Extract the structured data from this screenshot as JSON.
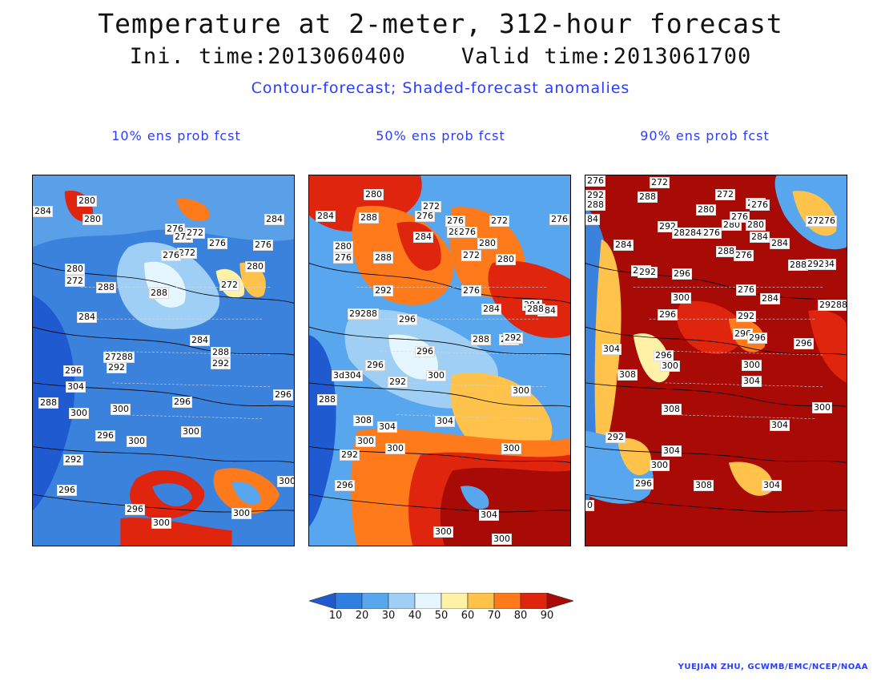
{
  "header": {
    "title": "Temperature at 2-meter, 312-hour forecast",
    "times": "Ini. time:2013060400    Valid time:2013061700",
    "subtitle": "Contour-forecast; Shaded-forecast anomalies"
  },
  "panels": [
    {
      "title": "10% ens prob fcst",
      "labels": [
        {
          "t": "280"
        },
        {
          "t": "284"
        },
        {
          "t": "280"
        },
        {
          "t": "276"
        },
        {
          "t": "272"
        },
        {
          "t": "272"
        },
        {
          "t": "272"
        },
        {
          "t": "276"
        },
        {
          "t": "276"
        },
        {
          "t": "284"
        },
        {
          "t": "280"
        },
        {
          "t": "272"
        },
        {
          "t": "276"
        },
        {
          "t": "280"
        },
        {
          "t": "280"
        },
        {
          "t": "288"
        },
        {
          "t": "288"
        },
        {
          "t": "272"
        },
        {
          "t": "284"
        },
        {
          "t": "284"
        },
        {
          "t": "288"
        },
        {
          "t": "292"
        },
        {
          "t": "27288"
        },
        {
          "t": "292"
        },
        {
          "t": "296"
        },
        {
          "t": "304"
        },
        {
          "t": "288"
        },
        {
          "t": "300"
        },
        {
          "t": "300"
        },
        {
          "t": "296"
        },
        {
          "t": "300"
        },
        {
          "t": "300"
        },
        {
          "t": "296"
        },
        {
          "t": "296"
        },
        {
          "t": "292"
        },
        {
          "t": "300"
        },
        {
          "t": "296"
        },
        {
          "t": "300"
        },
        {
          "t": "300"
        },
        {
          "t": "296"
        }
      ]
    },
    {
      "title": "50% ens prob fcst",
      "labels": [
        {
          "t": "280"
        },
        {
          "t": "272"
        },
        {
          "t": "284"
        },
        {
          "t": "288"
        },
        {
          "t": "276"
        },
        {
          "t": "276"
        },
        {
          "t": "272"
        },
        {
          "t": "276"
        },
        {
          "t": "284"
        },
        {
          "t": "280"
        },
        {
          "t": "276"
        },
        {
          "t": "280"
        },
        {
          "t": "280"
        },
        {
          "t": "272"
        },
        {
          "t": "280"
        },
        {
          "t": "276"
        },
        {
          "t": "288"
        },
        {
          "t": "288"
        },
        {
          "t": "292"
        },
        {
          "t": "276"
        },
        {
          "t": "284"
        },
        {
          "t": "284"
        },
        {
          "t": "284"
        },
        {
          "t": "288"
        },
        {
          "t": "29288"
        },
        {
          "t": "296"
        },
        {
          "t": "296"
        },
        {
          "t": "288"
        },
        {
          "t": "292"
        },
        {
          "t": "296"
        },
        {
          "t": "292"
        },
        {
          "t": "3d304"
        },
        {
          "t": "292"
        },
        {
          "t": "300"
        },
        {
          "t": "300"
        },
        {
          "t": "288"
        },
        {
          "t": "304"
        },
        {
          "t": "308"
        },
        {
          "t": "304"
        },
        {
          "t": "300"
        },
        {
          "t": "300"
        },
        {
          "t": "292"
        },
        {
          "t": "296"
        },
        {
          "t": "300"
        },
        {
          "t": "304"
        },
        {
          "t": "300"
        },
        {
          "t": "300"
        }
      ]
    },
    {
      "title": "90% ens prob fcst",
      "labels": [
        {
          "t": "276"
        },
        {
          "t": "272"
        },
        {
          "t": "292"
        },
        {
          "t": "288"
        },
        {
          "t": "280"
        },
        {
          "t": "272"
        },
        {
          "t": "272"
        },
        {
          "t": "288"
        },
        {
          "t": "276"
        },
        {
          "t": "84"
        },
        {
          "t": "292"
        },
        {
          "t": "280"
        },
        {
          "t": "276"
        },
        {
          "t": "280"
        },
        {
          "t": "27276"
        },
        {
          "t": "284"
        },
        {
          "t": "28284"
        },
        {
          "t": "276"
        },
        {
          "t": "284"
        },
        {
          "t": "288"
        },
        {
          "t": "276"
        },
        {
          "t": "284"
        },
        {
          "t": "288"
        },
        {
          "t": "284"
        },
        {
          "t": "288"
        },
        {
          "t": "292"
        },
        {
          "t": "296"
        },
        {
          "t": "292"
        },
        {
          "t": "276"
        },
        {
          "t": "300"
        },
        {
          "t": "284"
        },
        {
          "t": "29288"
        },
        {
          "t": "296"
        },
        {
          "t": "292"
        },
        {
          "t": "296"
        },
        {
          "t": "296"
        },
        {
          "t": "296"
        },
        {
          "t": "296"
        },
        {
          "t": "304"
        },
        {
          "t": "300"
        },
        {
          "t": "300"
        },
        {
          "t": "308"
        },
        {
          "t": "304"
        },
        {
          "t": "308"
        },
        {
          "t": "300"
        },
        {
          "t": "304"
        },
        {
          "t": "292"
        },
        {
          "t": "304"
        },
        {
          "t": "300"
        },
        {
          "t": "296"
        },
        {
          "t": "308"
        },
        {
          "t": "304"
        },
        {
          "t": "0"
        }
      ]
    }
  ],
  "legend": {
    "labels": [
      "10",
      "20",
      "30",
      "40",
      "50",
      "60",
      "70",
      "80",
      "90"
    ],
    "colors": [
      "#1f5ad0",
      "#2f7fe0",
      "#58a6ee",
      "#9fcff5",
      "#e6f6ff",
      "#fff1a6",
      "#ffc24a",
      "#ff7a1a",
      "#e0250f",
      "#a80a05"
    ]
  },
  "credit": "YUEJIAN ZHU, GCWMB/EMC/NCEP/NOAA"
}
